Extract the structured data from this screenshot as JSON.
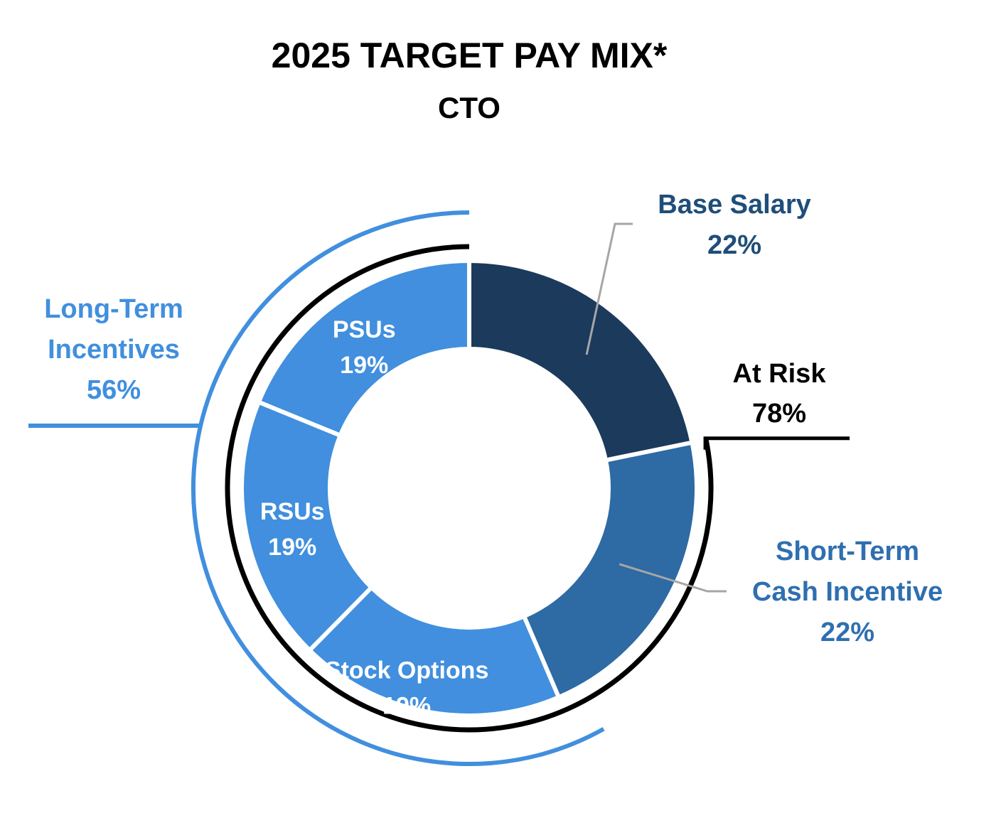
{
  "chart_data": {
    "type": "pie",
    "title": "2025 TARGET PAY MIX*",
    "subtitle": "CTO",
    "slices": [
      {
        "label": "Base Salary",
        "value": 22,
        "value_label": "22%",
        "color": "#1b3a5c",
        "label_color": "#1f4e79",
        "label_placement": "outside"
      },
      {
        "label": "Short-Term Cash Incentive",
        "label_lines": [
          "Short-Term",
          "Cash Incentive"
        ],
        "value": 22,
        "value_label": "22%",
        "color": "#2e6aa3",
        "label_color": "#2f6fb0",
        "label_placement": "outside"
      },
      {
        "label": "Stock Options",
        "value": 19,
        "value_label": "19%",
        "color": "#418fde",
        "label_color": "#ffffff",
        "label_placement": "inside"
      },
      {
        "label": "RSUs",
        "value": 19,
        "value_label": "19%",
        "color": "#418fde",
        "label_color": "#ffffff",
        "label_placement": "inside"
      },
      {
        "label": "PSUs",
        "value": 19,
        "value_label": "19%",
        "color": "#418fde",
        "label_color": "#ffffff",
        "label_placement": "inside"
      }
    ],
    "groups": [
      {
        "label": "At Risk",
        "value": 78,
        "value_label": "78%",
        "color": "#000000"
      },
      {
        "label": "Long-Term Incentives",
        "label_lines": [
          "Long-Term",
          "Incentives"
        ],
        "value": 56,
        "value_label": "56%",
        "color": "#418fde"
      }
    ]
  }
}
